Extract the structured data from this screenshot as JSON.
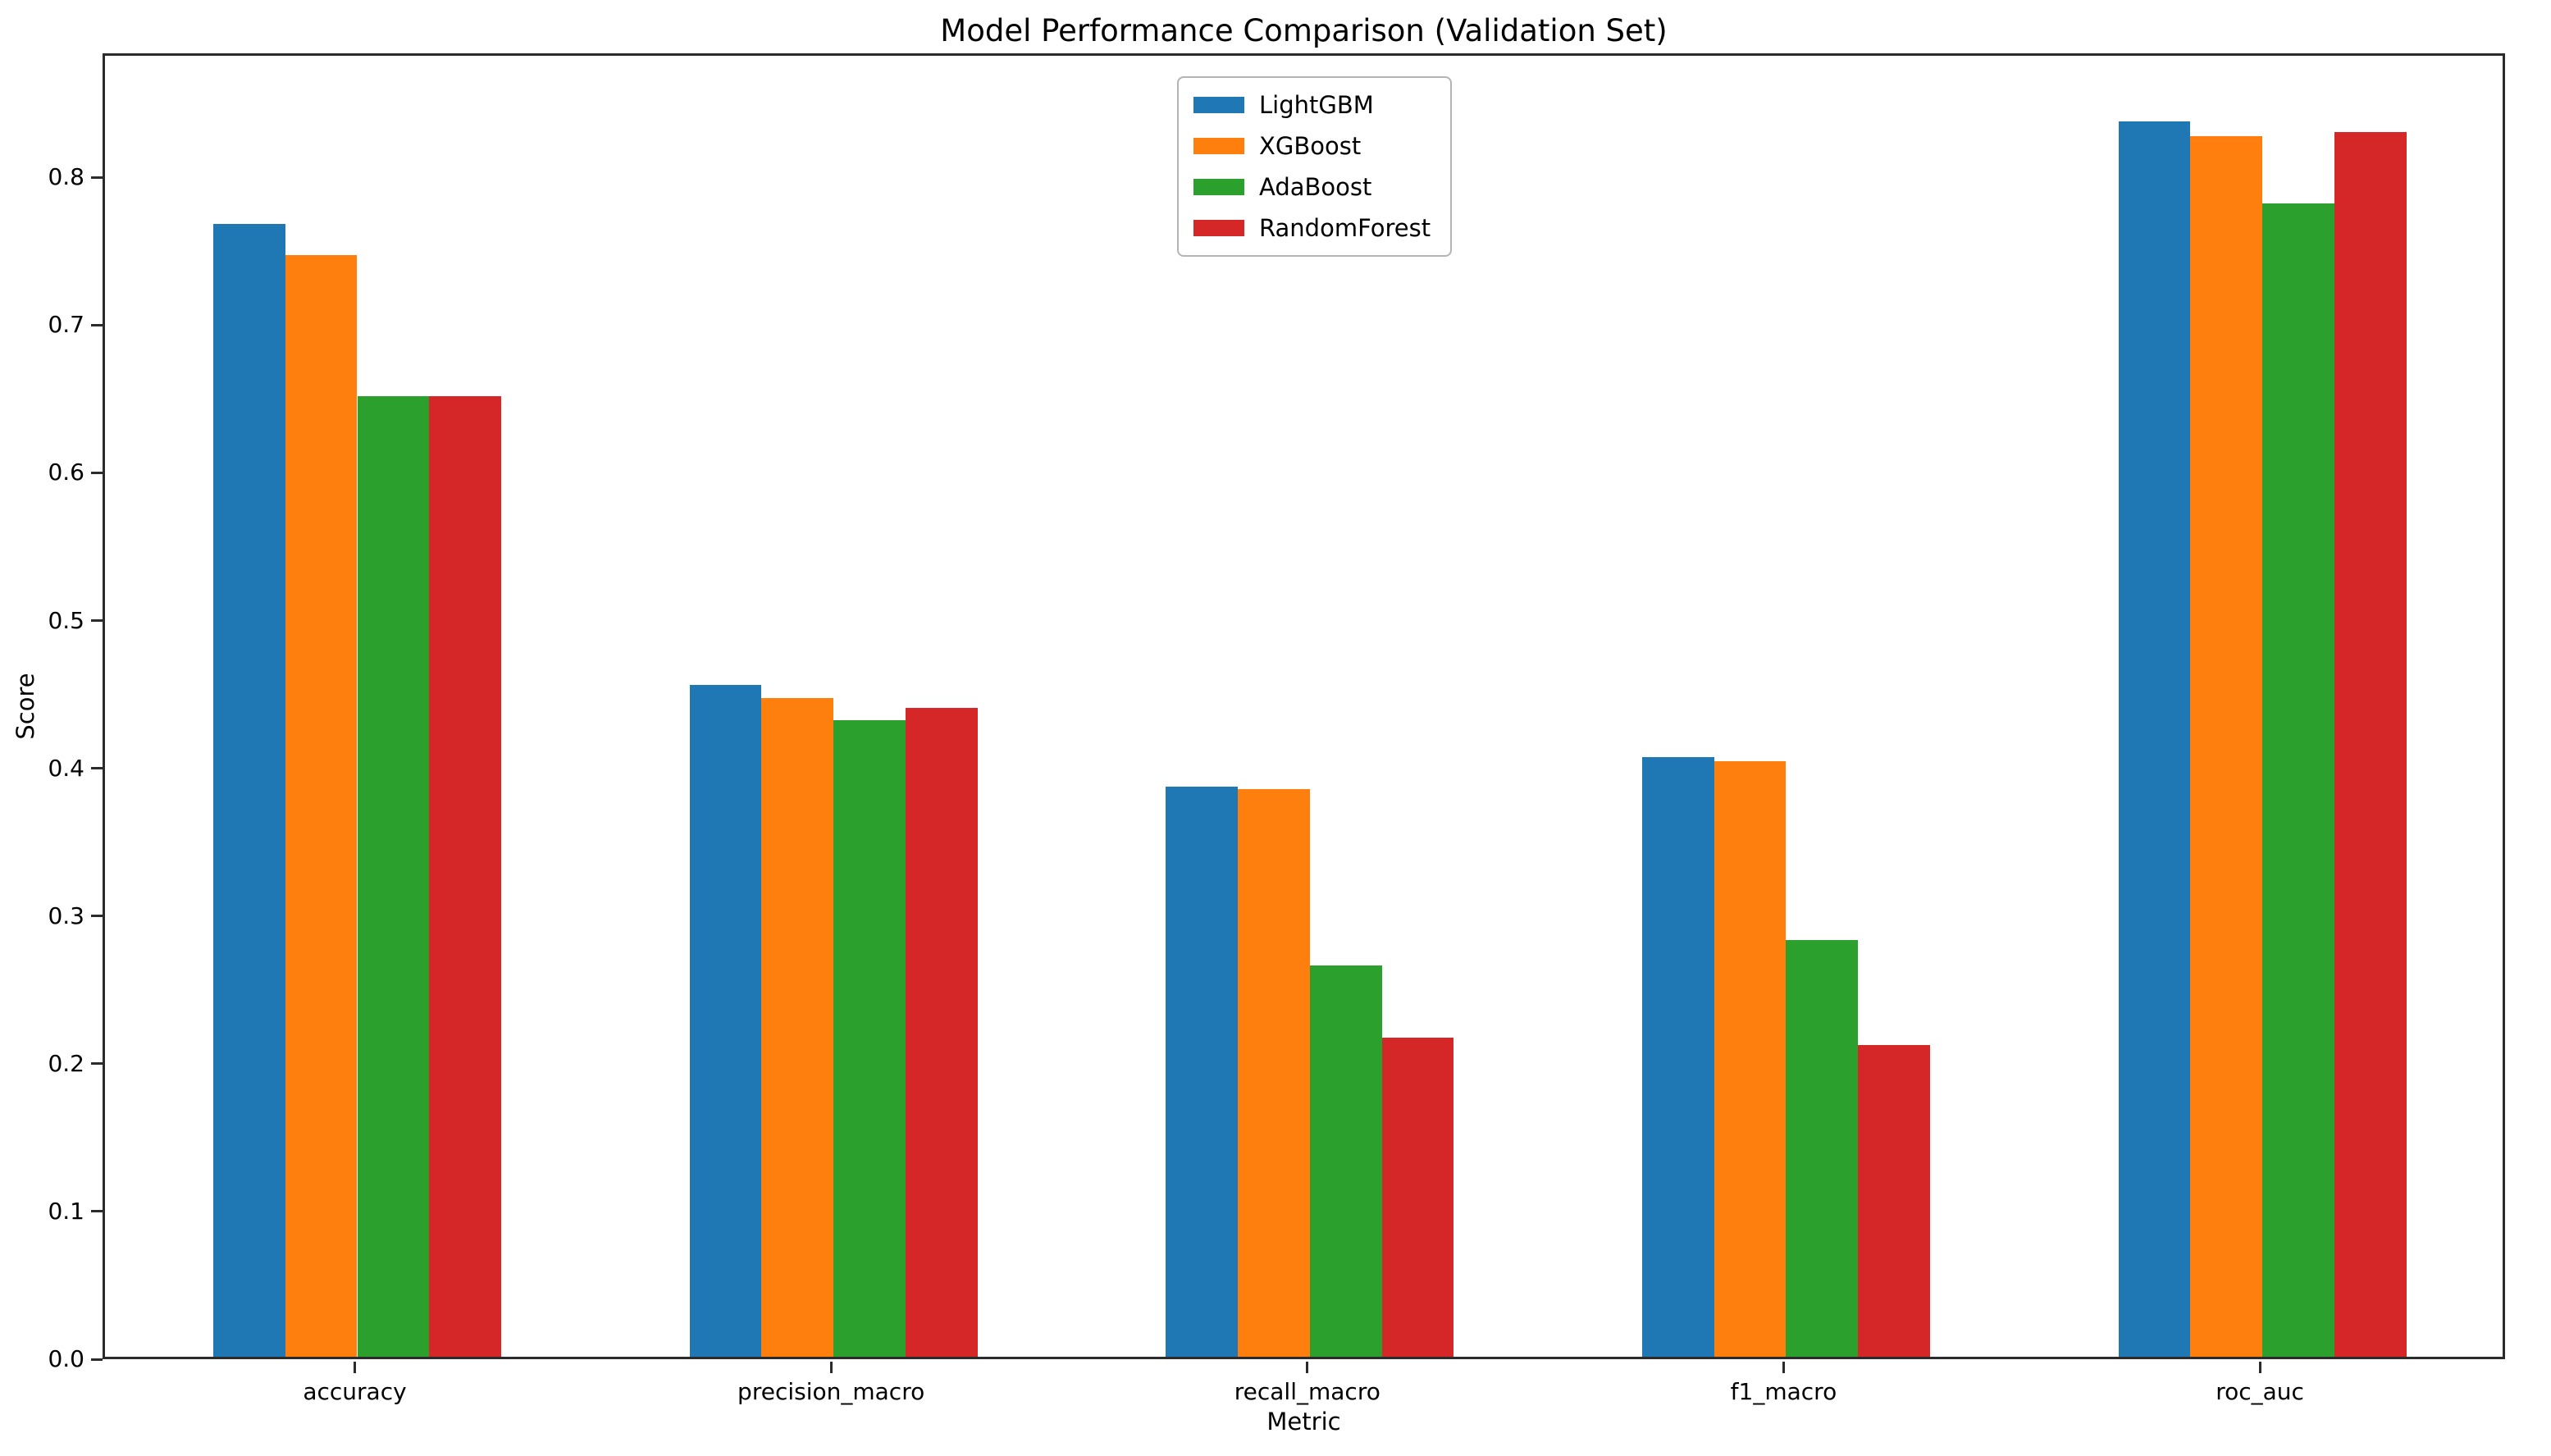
{
  "chart_data": {
    "type": "bar",
    "title": "Model Performance Comparison (Validation Set)",
    "xlabel": "Metric",
    "ylabel": "Score",
    "categories": [
      "accuracy",
      "precision_macro",
      "recall_macro",
      "f1_macro",
      "roc_auc"
    ],
    "series": [
      {
        "name": "LightGBM",
        "color": "#1f77b4",
        "values": [
          0.767,
          0.455,
          0.386,
          0.406,
          0.836
        ]
      },
      {
        "name": "XGBoost",
        "color": "#ff7f0e",
        "values": [
          0.746,
          0.446,
          0.384,
          0.403,
          0.826
        ]
      },
      {
        "name": "AdaBoost",
        "color": "#2ca02c",
        "values": [
          0.65,
          0.431,
          0.265,
          0.282,
          0.781
        ]
      },
      {
        "name": "RandomForest",
        "color": "#d62728",
        "values": [
          0.65,
          0.439,
          0.216,
          0.211,
          0.829
        ]
      }
    ],
    "yticks": [
      0.0,
      0.1,
      0.2,
      0.3,
      0.4,
      0.5,
      0.6,
      0.7,
      0.8
    ],
    "ylim": [
      0.0,
      0.884
    ],
    "grid": false,
    "legend_position": "upper center",
    "background_color": "#ffffff",
    "spine_color": "#2b2b2b"
  }
}
